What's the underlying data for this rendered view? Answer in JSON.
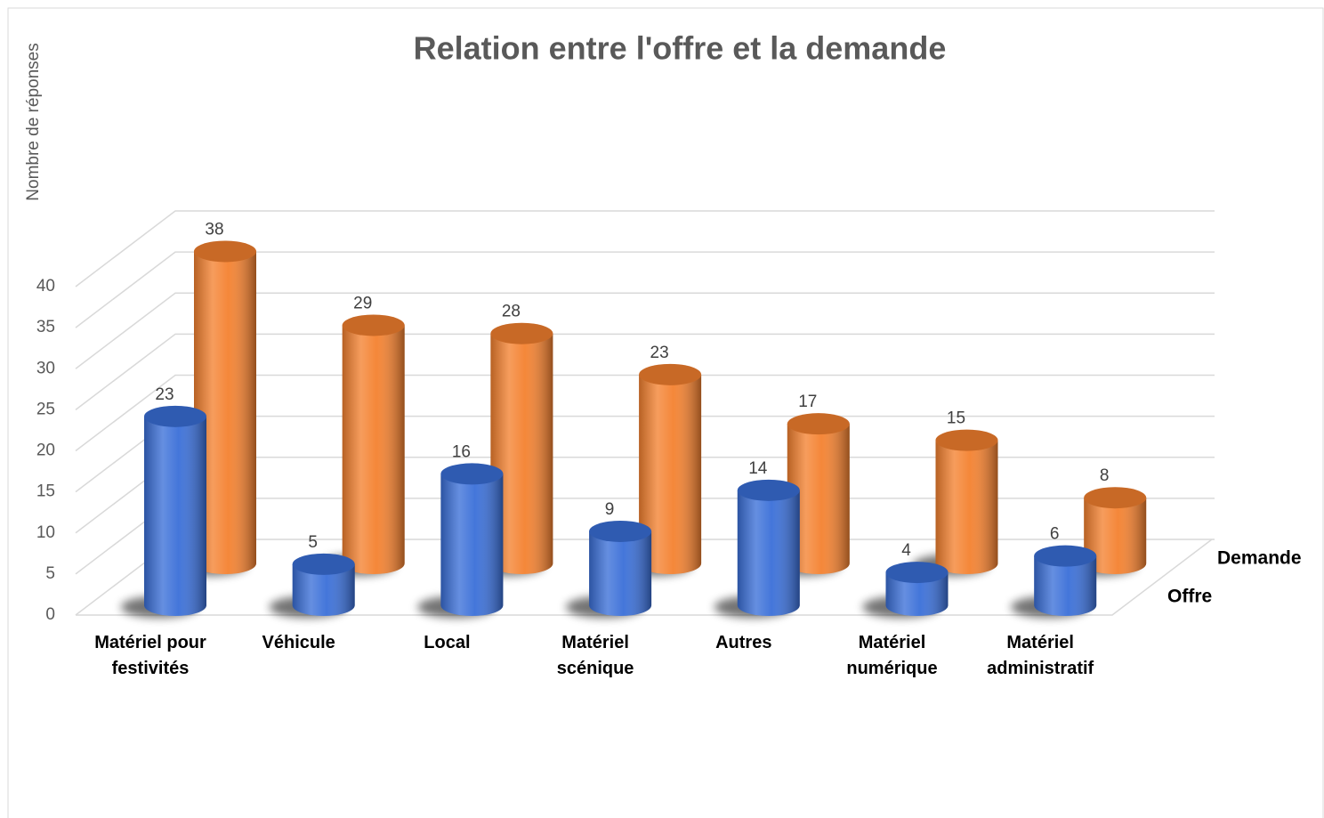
{
  "chart_data": {
    "type": "bar3d",
    "title": "Relation entre l'offre et la demande",
    "y_label": "Nombre de réponses",
    "categories": [
      "Matériel pour festivités",
      "Véhicule",
      "Local",
      "Matériel scénique",
      "Autres",
      "Matériel numérique",
      "Matériel administratif"
    ],
    "series": [
      {
        "name": "Offre",
        "color": "#3a6fd8",
        "values": [
          23,
          5,
          16,
          9,
          14,
          4,
          6
        ]
      },
      {
        "name": "Demande",
        "color": "#f4812f",
        "values": [
          38,
          29,
          28,
          23,
          17,
          15,
          8
        ]
      }
    ],
    "ylim": [
      0,
      40
    ],
    "yticks": [
      0,
      5,
      10,
      15,
      20,
      25,
      30,
      35,
      40
    ],
    "grid": true
  }
}
